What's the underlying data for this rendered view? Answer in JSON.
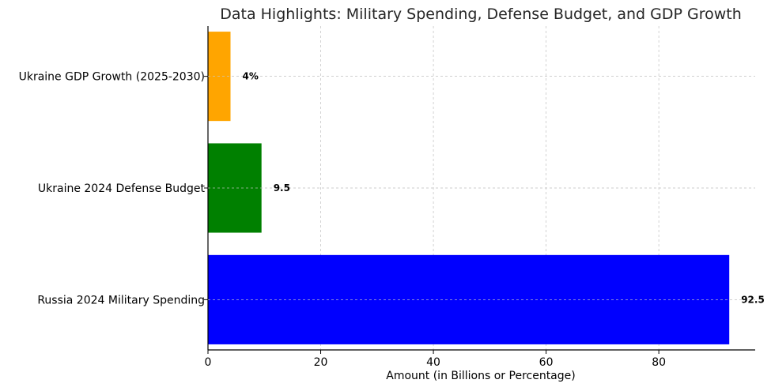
{
  "chart_data": {
    "type": "bar",
    "orientation": "horizontal",
    "title": "Data Highlights: Military Spending, Defense Budget, and GDP Growth",
    "xlabel": "Amount (in Billions or Percentage)",
    "ylabel": "",
    "categories": [
      "Russia 2024 Military Spending",
      "Ukraine 2024 Defense Budget",
      "Ukraine GDP Growth (2025-2030)"
    ],
    "values": [
      92.5,
      9.5,
      4
    ],
    "value_labels": [
      "92.5",
      "9.5",
      "4%"
    ],
    "colors": [
      "#0000ff",
      "#008000",
      "#ffa500"
    ],
    "xlim": [
      0,
      97.1
    ],
    "xticks": [
      0,
      20,
      40,
      60,
      80
    ],
    "grid": true
  }
}
